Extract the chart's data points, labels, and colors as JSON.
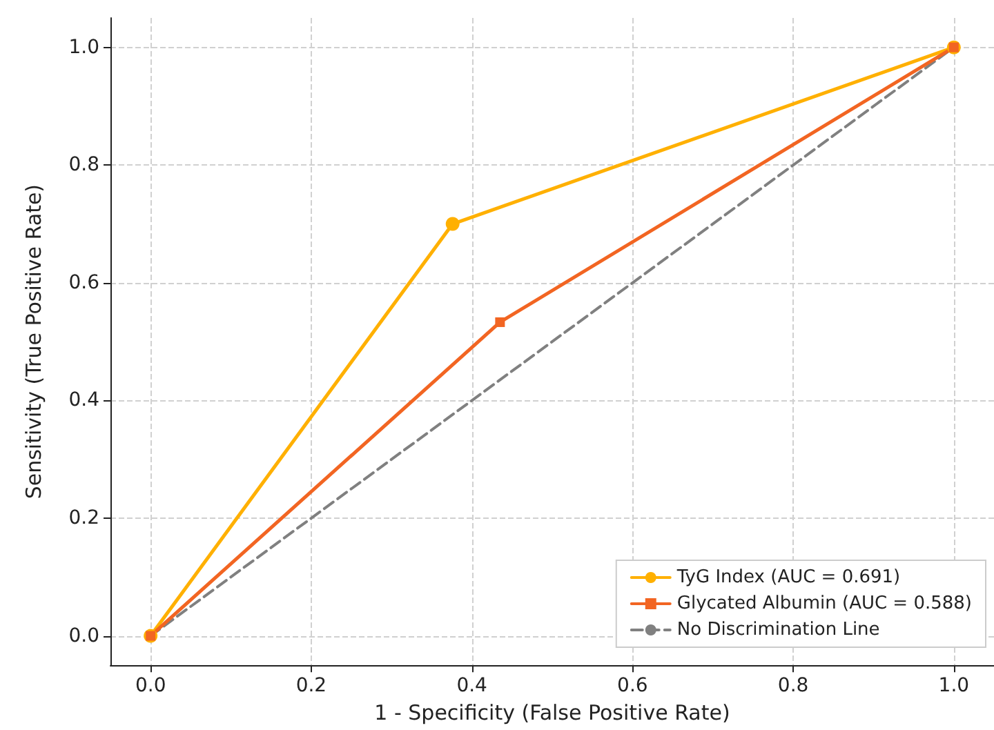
{
  "chart_data": {
    "type": "line",
    "xlabel": "1 - Specificity (False Positive Rate)",
    "ylabel": "Sensitivity (True Positive Rate)",
    "series": [
      {
        "name": "TyG Index (AUC = 0.691)",
        "color": "#ffb000",
        "x": [
          0,
          0.376,
          1
        ],
        "values": [
          0,
          0.7,
          1
        ],
        "marker": "circle",
        "line_style": "solid"
      },
      {
        "name": "Glycated Albumin (AUC = 0.588)",
        "color": "#f26522",
        "x": [
          0,
          0.435,
          1
        ],
        "values": [
          0,
          0.533,
          1
        ],
        "marker": "square",
        "line_style": "solid"
      },
      {
        "name": "No Discrimination Line",
        "color": "#808080",
        "x": [
          0,
          1
        ],
        "values": [
          0,
          1
        ],
        "marker": "none",
        "line_style": "dashed"
      }
    ],
    "xlim": [
      -0.05,
      1.05
    ],
    "ylim": [
      -0.05,
      1.05
    ],
    "xticks": [
      {
        "value": 0,
        "label": "0.0"
      },
      {
        "value": 0.2,
        "label": "0.2"
      },
      {
        "value": 0.4,
        "label": "0.4"
      },
      {
        "value": 0.6,
        "label": "0.6"
      },
      {
        "value": 0.8,
        "label": "0.8"
      },
      {
        "value": 1,
        "label": "1.0"
      }
    ],
    "yticks": [
      {
        "value": 0,
        "label": "0.0"
      },
      {
        "value": 0.2,
        "label": "0.2"
      },
      {
        "value": 0.4,
        "label": "0.4"
      },
      {
        "value": 0.6,
        "label": "0.6"
      },
      {
        "value": 0.8,
        "label": "0.8"
      },
      {
        "value": 1,
        "label": "1.0"
      }
    ],
    "grid": true,
    "legend": "bottom right"
  }
}
